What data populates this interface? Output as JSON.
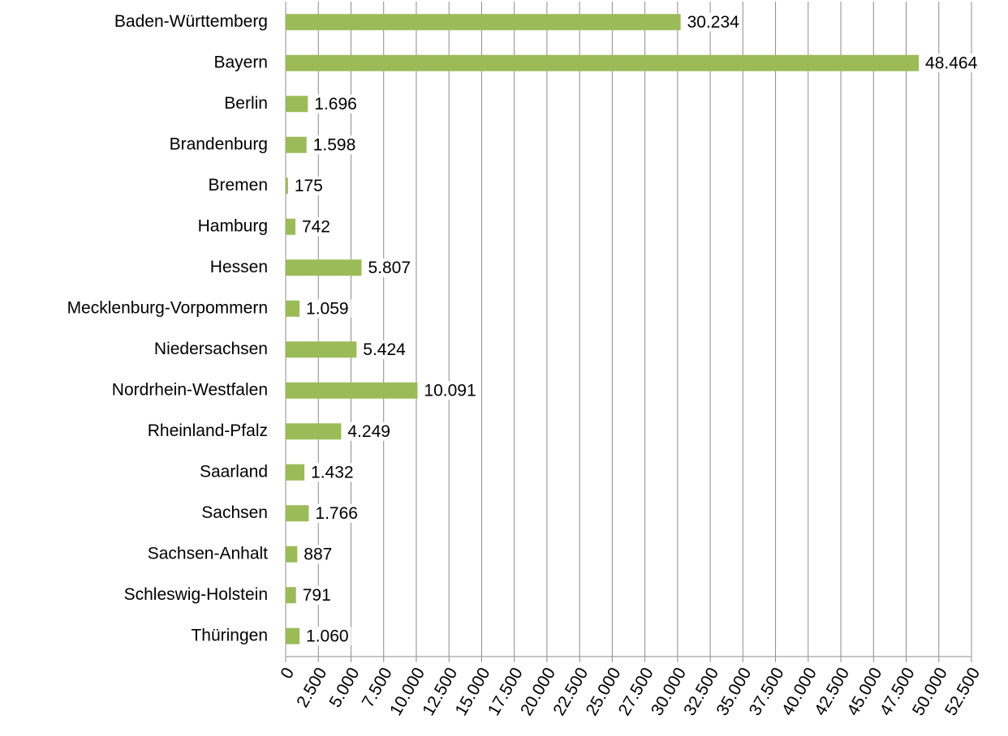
{
  "chart_data": {
    "type": "bar",
    "orientation": "horizontal",
    "categories": [
      "Baden-Württemberg",
      "Bayern",
      "Berlin",
      "Brandenburg",
      "Bremen",
      "Hamburg",
      "Hessen",
      "Mecklenburg-Vorpommern",
      "Niedersachsen",
      "Nordrhein-Westfalen",
      "Rheinland-Pfalz",
      "Saarland",
      "Sachsen",
      "Sachsen-Anhalt",
      "Schleswig-Holstein",
      "Thüringen"
    ],
    "values": [
      30234,
      48464,
      1696,
      1598,
      175,
      742,
      5807,
      1059,
      5424,
      10091,
      4249,
      1432,
      1766,
      887,
      791,
      1060
    ],
    "value_labels": [
      "30.234",
      "48.464",
      "1.696",
      "1.598",
      "175",
      "742",
      "5.807",
      "1.059",
      "5.424",
      "10.091",
      "4.249",
      "1.432",
      "1.766",
      "887",
      "791",
      "1.060"
    ],
    "color": "#9bbb59",
    "xlim": [
      0,
      52500
    ],
    "xticks": [
      0,
      {
        "value": 2500,
        "label": "2.500"
      },
      {
        "value": 5000,
        "label": "5.000"
      },
      {
        "value": 7500,
        "label": "7.500"
      },
      {
        "value": 10000,
        "label": "10.000"
      },
      {
        "value": 12500,
        "label": "12.500"
      },
      {
        "value": 15000,
        "label": "15.000"
      },
      {
        "value": 17500,
        "label": "17.500"
      },
      {
        "value": 20000,
        "label": "20.000"
      },
      {
        "value": 22500,
        "label": "22.500"
      },
      {
        "value": 25000,
        "label": "25.000"
      },
      {
        "value": 27500,
        "label": "27.500"
      },
      {
        "value": 30000,
        "label": "30.000"
      },
      {
        "value": 32500,
        "label": "32.500"
      },
      {
        "value": 35000,
        "label": "35.000"
      },
      {
        "value": 37500,
        "label": "37.500"
      },
      {
        "value": 40000,
        "label": "40.000"
      },
      {
        "value": 42500,
        "label": "42.500"
      },
      {
        "value": 45000,
        "label": "45.000"
      },
      {
        "value": 47500,
        "label": "47.500"
      },
      {
        "value": 50000,
        "label": "50.000"
      },
      {
        "value": 52500,
        "label": "52.500"
      }
    ],
    "grid": true
  }
}
